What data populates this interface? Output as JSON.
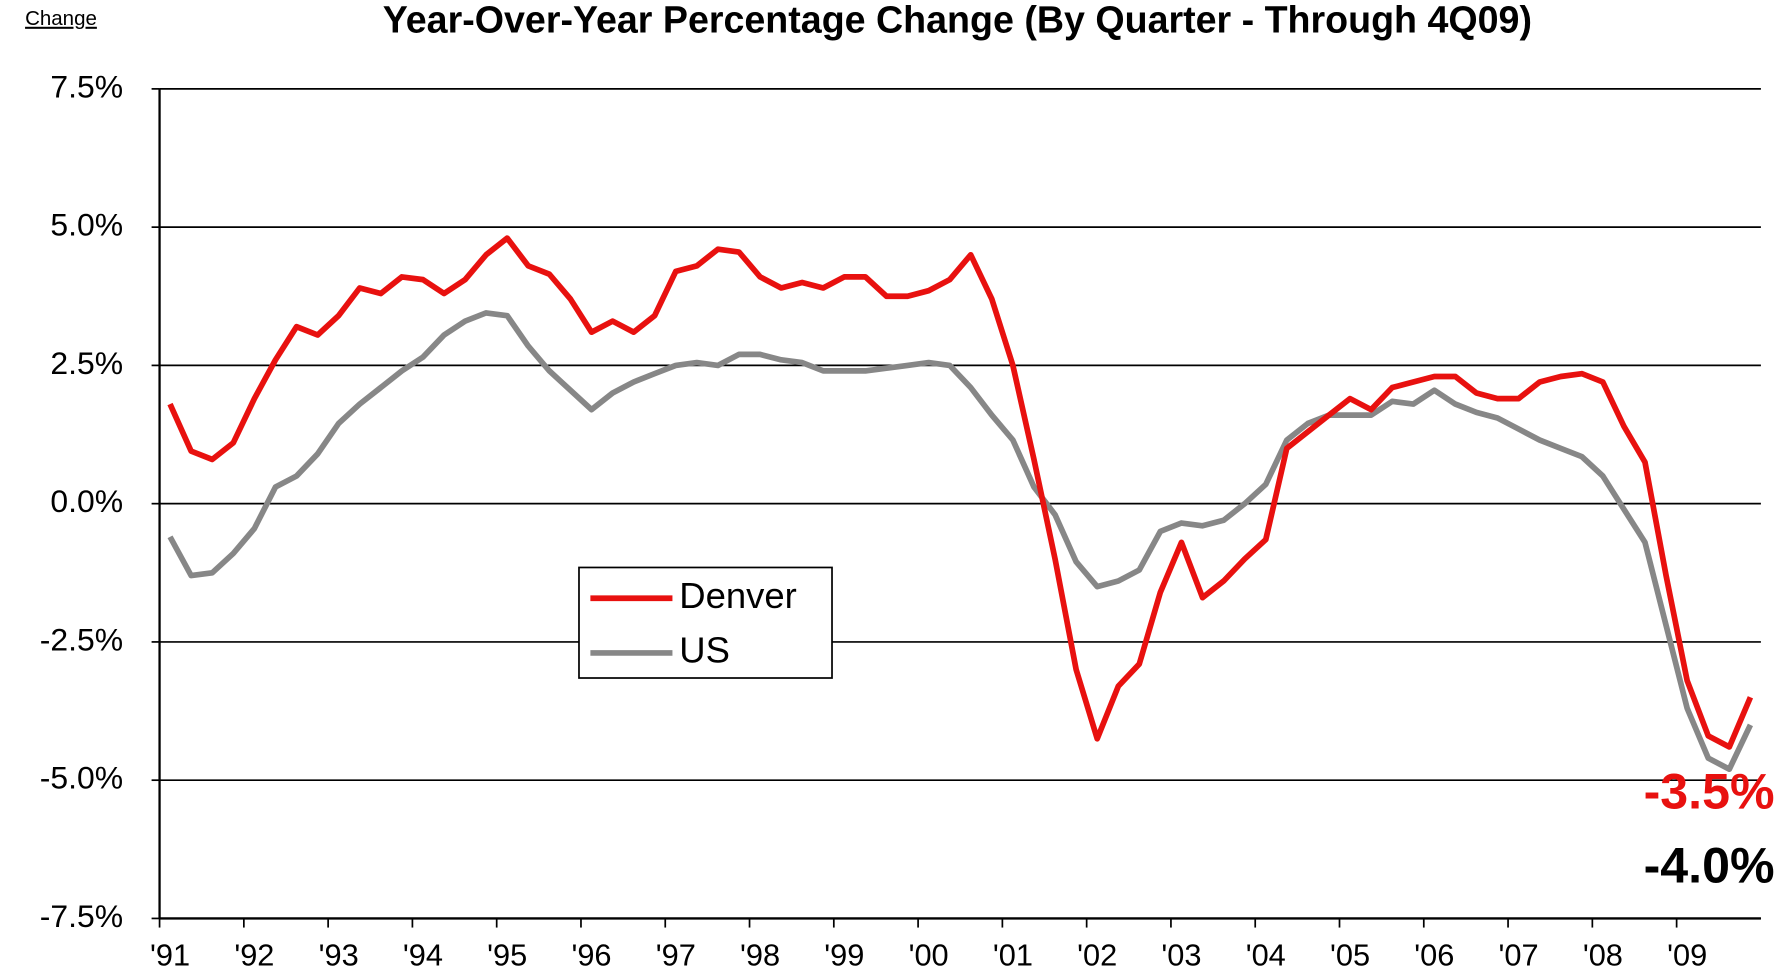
{
  "chart_data": {
    "type": "line",
    "title": "Year-Over-Year Percentage Change (By Quarter - Through 4Q09)",
    "ylabel": "Change",
    "categories": [
      "'91",
      null,
      null,
      null,
      "'92",
      null,
      null,
      null,
      "'93",
      null,
      null,
      null,
      "'94",
      null,
      null,
      null,
      "'95",
      null,
      null,
      null,
      "'96",
      null,
      null,
      null,
      "'97",
      null,
      null,
      null,
      "'98",
      null,
      null,
      null,
      "'99",
      null,
      null,
      null,
      "'00",
      null,
      null,
      null,
      "'01",
      null,
      null,
      null,
      "'02",
      null,
      null,
      null,
      "'03",
      null,
      null,
      null,
      "'04",
      null,
      null,
      null,
      "'05",
      null,
      null,
      null,
      "'06",
      null,
      null,
      null,
      "'07",
      null,
      null,
      null,
      "'08",
      null,
      null,
      null,
      "'09",
      null,
      null,
      null
    ],
    "series": [
      {
        "name": "Denver",
        "color": "#e8110f",
        "values": [
          1.8,
          0.95,
          0.8,
          1.1,
          1.9,
          2.6,
          3.2,
          3.05,
          3.4,
          3.9,
          3.8,
          4.1,
          4.05,
          3.8,
          4.05,
          4.5,
          4.8,
          4.3,
          4.15,
          3.7,
          3.1,
          3.3,
          3.1,
          3.4,
          4.2,
          4.3,
          4.6,
          4.55,
          4.1,
          3.9,
          4.0,
          3.9,
          4.1,
          4.1,
          3.75,
          3.75,
          3.85,
          4.05,
          4.5,
          3.7,
          2.5,
          0.8,
          -1.0,
          -3.0,
          -4.25,
          -3.3,
          -2.9,
          -1.6,
          -0.7,
          -1.7,
          -1.4,
          -1.0,
          -0.65,
          1.0,
          1.3,
          1.6,
          1.9,
          1.7,
          2.1,
          2.2,
          2.3,
          2.3,
          2.0,
          1.9,
          1.9,
          2.2,
          2.3,
          2.35,
          2.2,
          1.4,
          0.75,
          -1.3,
          -3.2,
          -4.2,
          -4.4,
          -3.5
        ]
      },
      {
        "name": "US",
        "color": "#878787",
        "values": [
          -0.6,
          -1.3,
          -1.25,
          -0.9,
          -0.45,
          0.3,
          0.5,
          0.9,
          1.45,
          1.8,
          2.1,
          2.4,
          2.65,
          3.05,
          3.3,
          3.45,
          3.4,
          2.85,
          2.4,
          2.05,
          1.7,
          2.0,
          2.2,
          2.35,
          2.5,
          2.55,
          2.5,
          2.7,
          2.7,
          2.6,
          2.55,
          2.4,
          2.4,
          2.4,
          2.45,
          2.5,
          2.55,
          2.5,
          2.1,
          1.6,
          1.15,
          0.3,
          -0.2,
          -1.05,
          -1.5,
          -1.4,
          -1.2,
          -0.5,
          -0.35,
          -0.4,
          -0.3,
          0.0,
          0.35,
          1.15,
          1.45,
          1.6,
          1.6,
          1.6,
          1.85,
          1.8,
          2.05,
          1.8,
          1.65,
          1.55,
          1.35,
          1.15,
          1.0,
          0.85,
          0.5,
          -0.1,
          -0.7,
          -2.2,
          -3.7,
          -4.6,
          -4.8,
          -4.0
        ]
      }
    ],
    "annotations": [
      {
        "text": "-3.5%",
        "color": "#e8110f"
      },
      {
        "text": "-4.0%",
        "color": "#000000"
      }
    ],
    "ylim": [
      -7.5,
      7.5
    ],
    "yticks": [
      {
        "value": -7.5,
        "label": "-7.5%"
      },
      {
        "value": -5,
        "label": "-5.0%"
      },
      {
        "value": -2.5,
        "label": "-2.5%"
      },
      {
        "value": 0,
        "label": "0.0%"
      },
      {
        "value": 2.5,
        "label": "2.5%"
      },
      {
        "value": 5,
        "label": "5.0%"
      },
      {
        "value": 7.5,
        "label": "7.5%"
      }
    ],
    "grid": true
  }
}
